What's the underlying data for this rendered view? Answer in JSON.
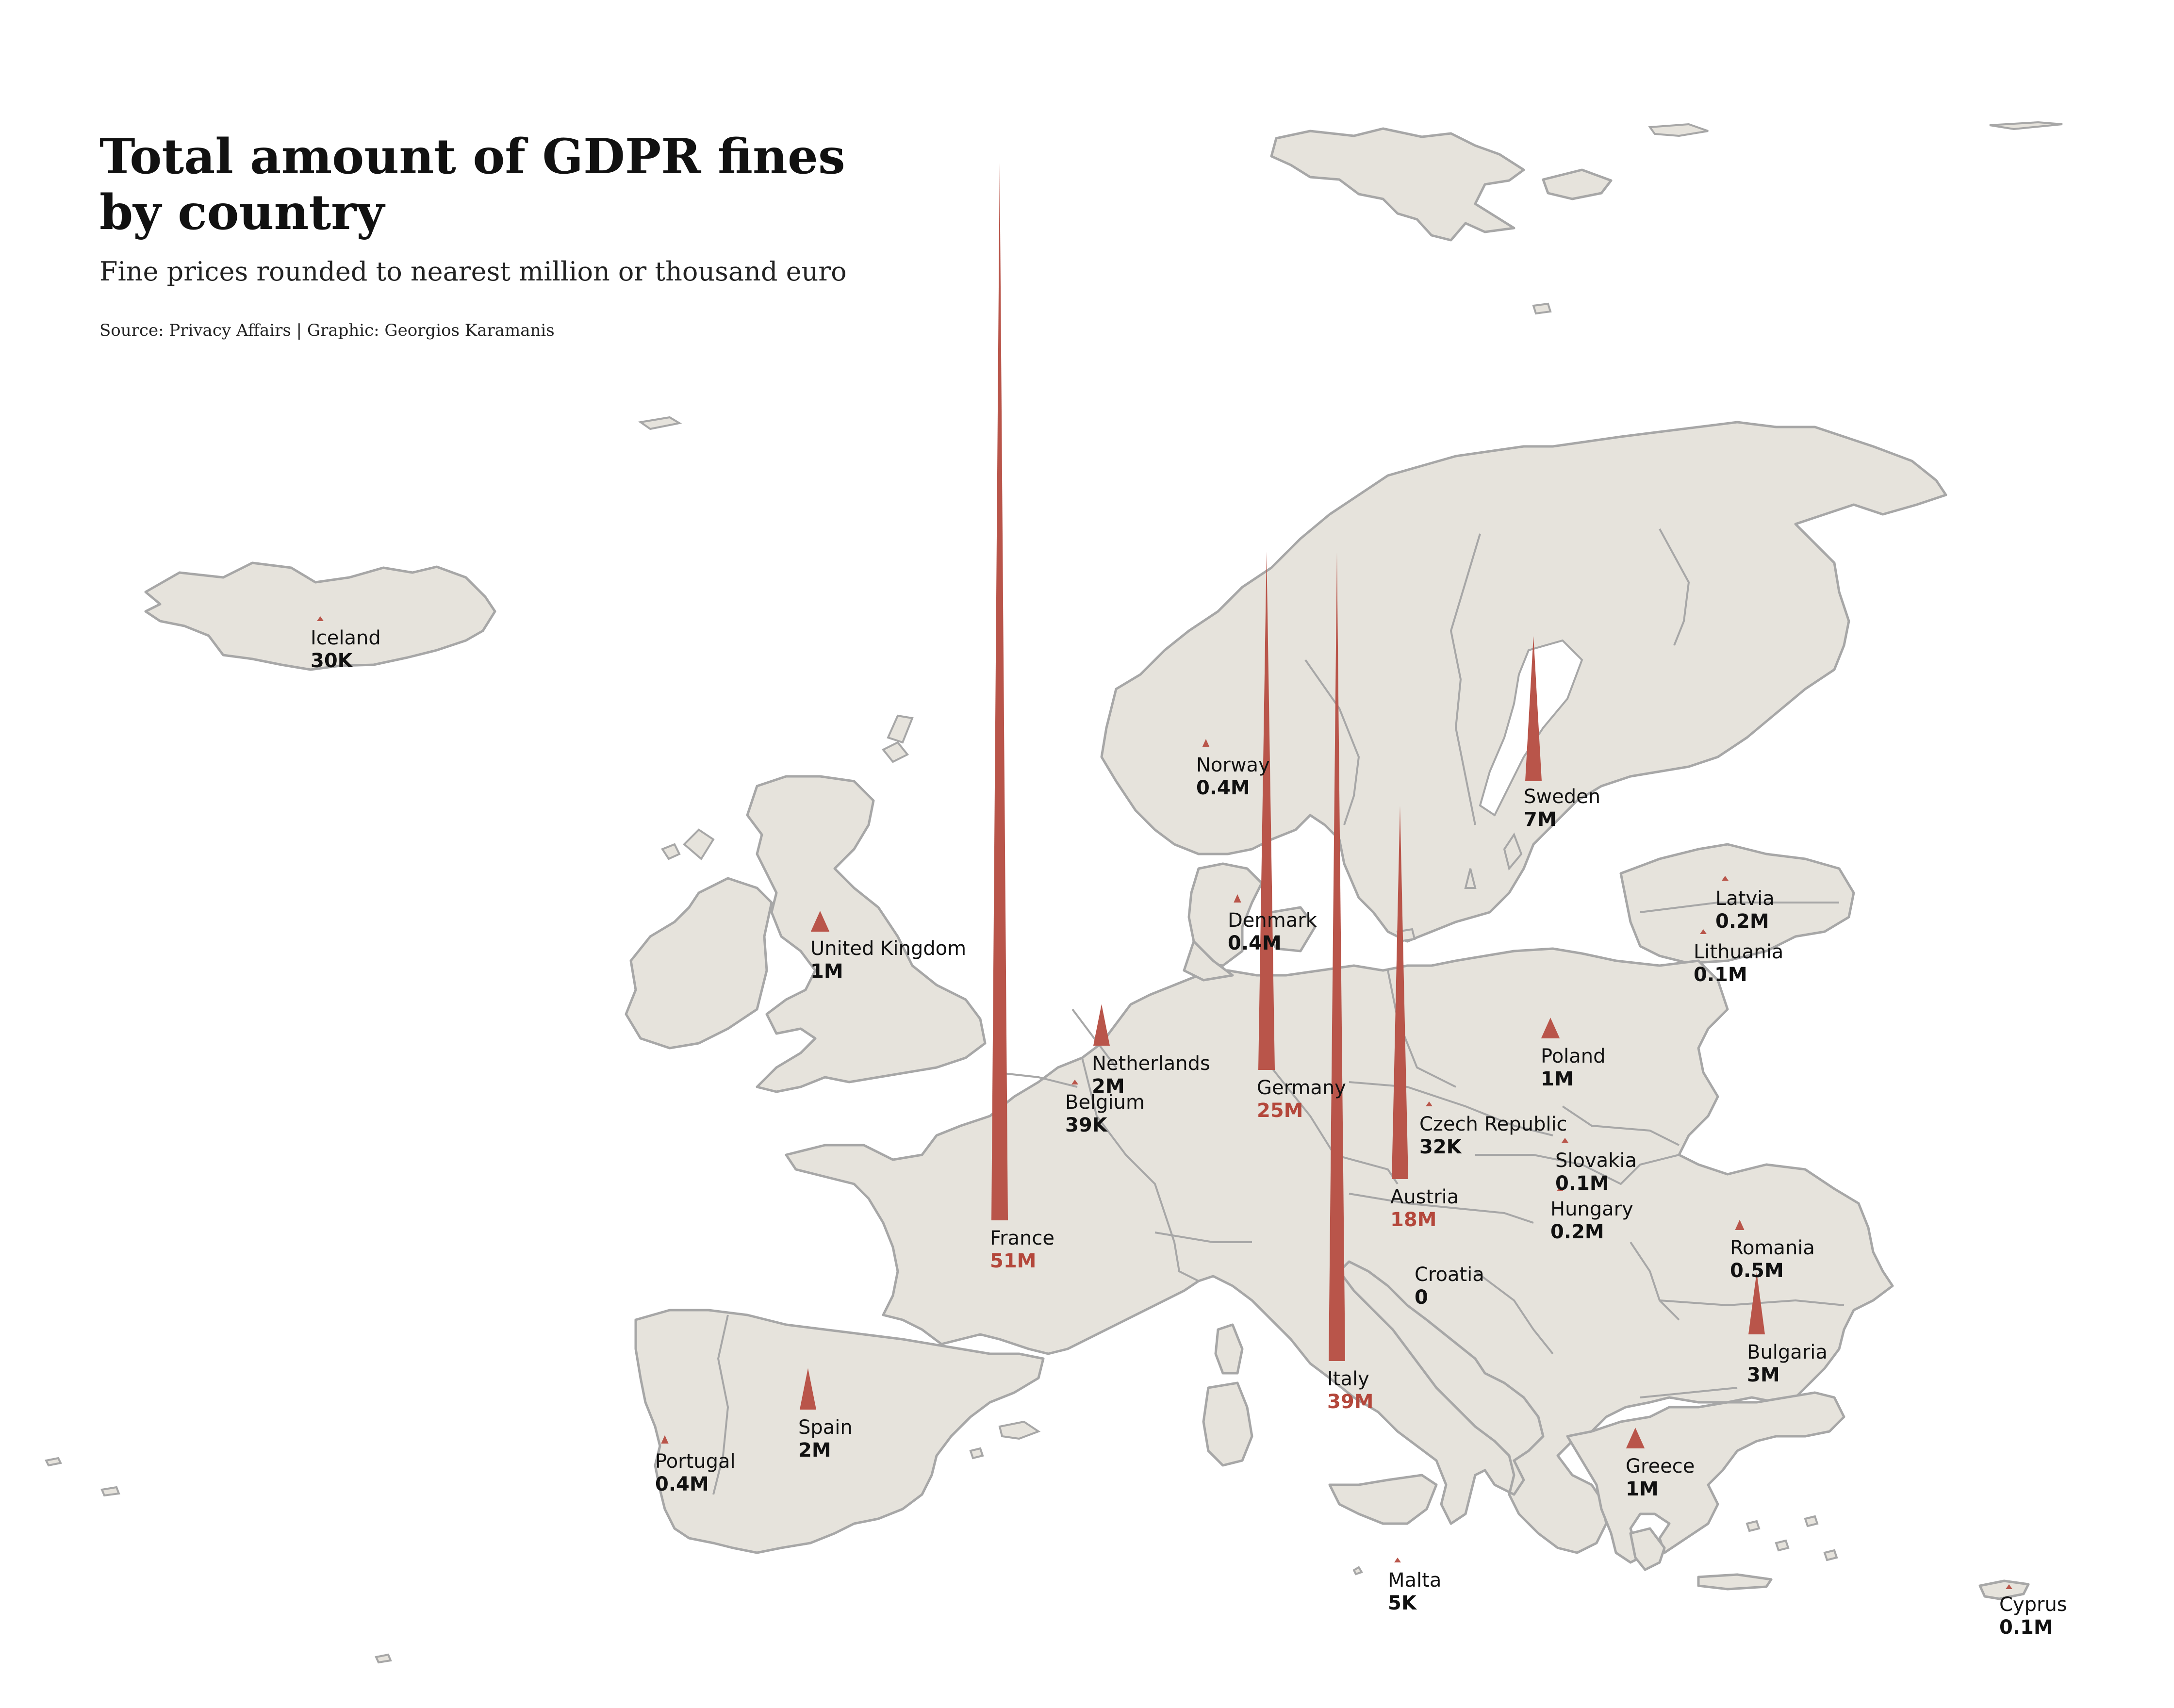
{
  "title_line1": "Total amount of GDPR fines",
  "title_line2": "by country",
  "subtitle": "Fine prices rounded to nearest million or thousand euro",
  "caption": "Source: Privacy Affairs | Graphic: Georgios Karamanis",
  "colors": {
    "land": "#e6e3dc",
    "border": "#a7a7a7",
    "spike": "#b9554a",
    "highlight_value": "#b4473b",
    "text": "#111111",
    "background": "#ffffff"
  },
  "chart_data": {
    "type": "spike-map",
    "encoding": "spike height proportional to total fine amount (EUR)",
    "countries": [
      {
        "name": "Iceland",
        "value_label": "30K",
        "fine_eur": 30000,
        "highlight": false
      },
      {
        "name": "Norway",
        "value_label": "0.4M",
        "fine_eur": 400000,
        "highlight": false
      },
      {
        "name": "Sweden",
        "value_label": "7M",
        "fine_eur": 7000000,
        "highlight": false
      },
      {
        "name": "Latvia",
        "value_label": "0.2M",
        "fine_eur": 200000,
        "highlight": false
      },
      {
        "name": "Lithuania",
        "value_label": "0.1M",
        "fine_eur": 100000,
        "highlight": false
      },
      {
        "name": "Denmark",
        "value_label": "0.4M",
        "fine_eur": 400000,
        "highlight": false
      },
      {
        "name": "United Kingdom",
        "value_label": "1M",
        "fine_eur": 1000000,
        "highlight": false
      },
      {
        "name": "Netherlands",
        "value_label": "2M",
        "fine_eur": 2000000,
        "highlight": false
      },
      {
        "name": "Germany",
        "value_label": "25M",
        "fine_eur": 25000000,
        "highlight": true
      },
      {
        "name": "Poland",
        "value_label": "1M",
        "fine_eur": 1000000,
        "highlight": false
      },
      {
        "name": "Belgium",
        "value_label": "39K",
        "fine_eur": 39000,
        "highlight": false
      },
      {
        "name": "Czech Republic",
        "value_label": "32K",
        "fine_eur": 32000,
        "highlight": false
      },
      {
        "name": "Slovakia",
        "value_label": "0.1M",
        "fine_eur": 100000,
        "highlight": false
      },
      {
        "name": "Austria",
        "value_label": "18M",
        "fine_eur": 18000000,
        "highlight": true
      },
      {
        "name": "Hungary",
        "value_label": "0.2M",
        "fine_eur": 200000,
        "highlight": false
      },
      {
        "name": "France",
        "value_label": "51M",
        "fine_eur": 51000000,
        "highlight": true
      },
      {
        "name": "Romania",
        "value_label": "0.5M",
        "fine_eur": 500000,
        "highlight": false
      },
      {
        "name": "Croatia",
        "value_label": "0",
        "fine_eur": 0,
        "highlight": false
      },
      {
        "name": "Bulgaria",
        "value_label": "3M",
        "fine_eur": 3000000,
        "highlight": false
      },
      {
        "name": "Italy",
        "value_label": "39M",
        "fine_eur": 39000000,
        "highlight": true
      },
      {
        "name": "Spain",
        "value_label": "2M",
        "fine_eur": 2000000,
        "highlight": false
      },
      {
        "name": "Portugal",
        "value_label": "0.4M",
        "fine_eur": 400000,
        "highlight": false
      },
      {
        "name": "Greece",
        "value_label": "1M",
        "fine_eur": 1000000,
        "highlight": false
      },
      {
        "name": "Malta",
        "value_label": "5K",
        "fine_eur": 5000,
        "highlight": false
      },
      {
        "name": "Cyprus",
        "value_label": "0.1M",
        "fine_eur": 100000,
        "highlight": false
      }
    ]
  }
}
